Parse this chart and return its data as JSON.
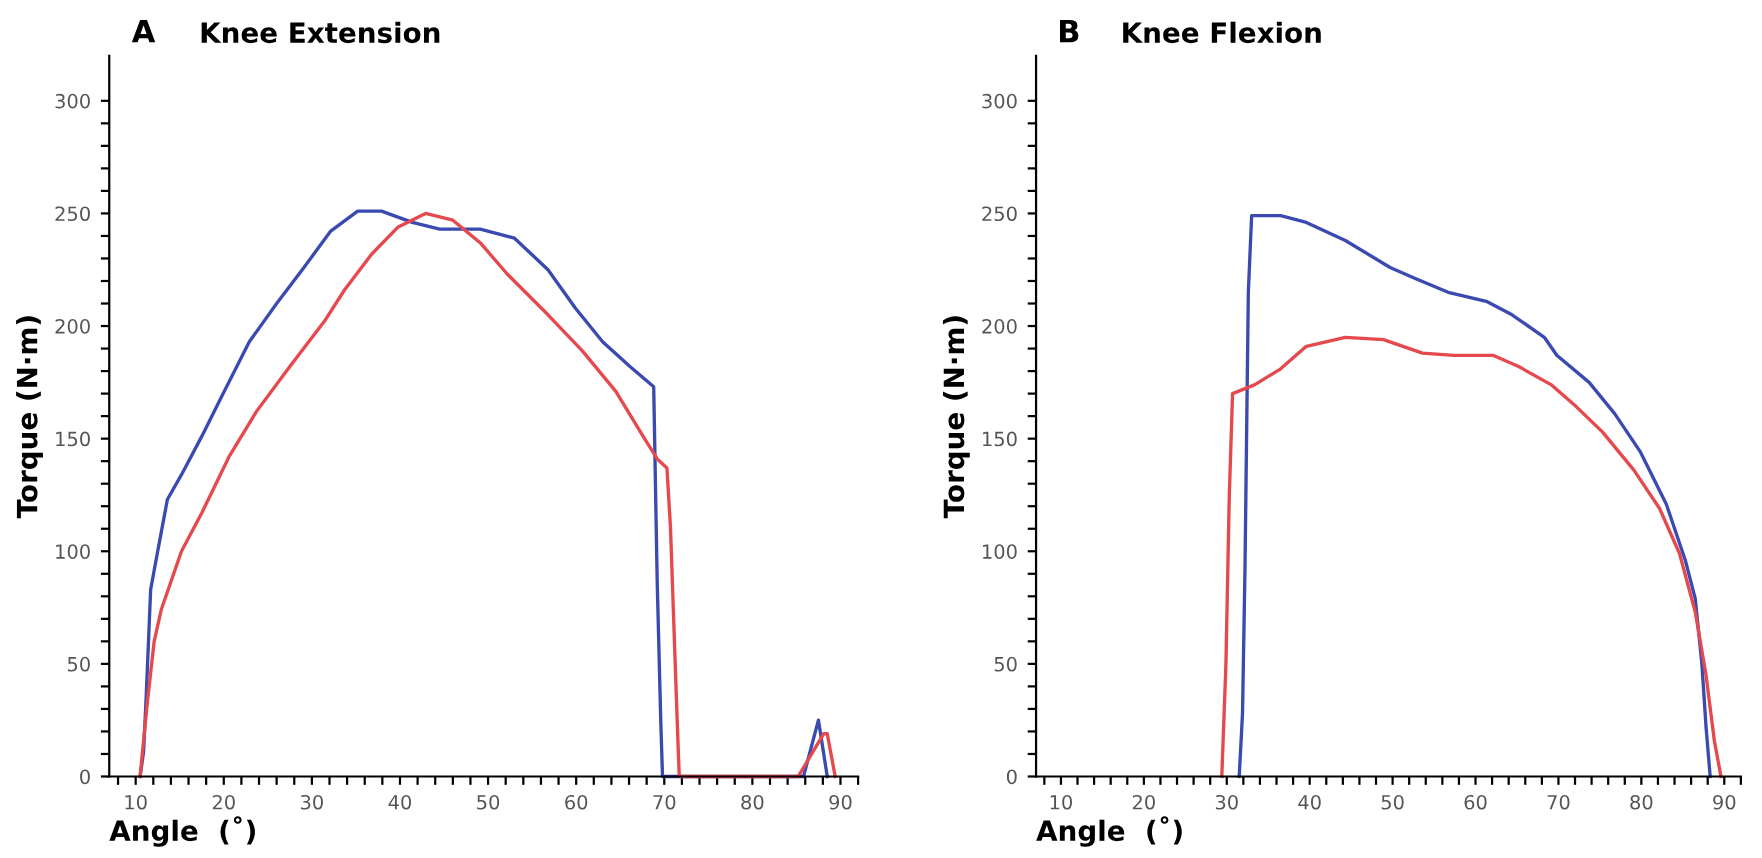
{
  "chart_data": [
    {
      "type": "line",
      "title": "Knee Extension",
      "annotations": [
        "A"
      ],
      "xlabel": "Angle  (˚)",
      "ylabel": "Torque (N·m)",
      "xlim": [
        7,
        92
      ],
      "ylim": [
        0,
        320
      ],
      "xticks": [
        {
          "value": 8,
          "label": null
        },
        10,
        {
          "value": 12,
          "label": null
        },
        {
          "value": 14,
          "label": null
        },
        {
          "value": 16,
          "label": null
        },
        {
          "value": 18,
          "label": null
        },
        20,
        {
          "value": 22,
          "label": null
        },
        {
          "value": 24,
          "label": null
        },
        {
          "value": 26,
          "label": null
        },
        {
          "value": 28,
          "label": null
        },
        30,
        {
          "value": 32,
          "label": null
        },
        {
          "value": 34,
          "label": null
        },
        {
          "value": 36,
          "label": null
        },
        {
          "value": 38,
          "label": null
        },
        40,
        {
          "value": 42,
          "label": null
        },
        {
          "value": 44,
          "label": null
        },
        {
          "value": 46,
          "label": null
        },
        {
          "value": 48,
          "label": null
        },
        50,
        {
          "value": 52,
          "label": null
        },
        {
          "value": 54,
          "label": null
        },
        {
          "value": 56,
          "label": null
        },
        {
          "value": 58,
          "label": null
        },
        60,
        {
          "value": 62,
          "label": null
        },
        {
          "value": 64,
          "label": null
        },
        {
          "value": 66,
          "label": null
        },
        {
          "value": 68,
          "label": null
        },
        70,
        {
          "value": 72,
          "label": null
        },
        {
          "value": 74,
          "label": null
        },
        {
          "value": 76,
          "label": null
        },
        {
          "value": 78,
          "label": null
        },
        80,
        {
          "value": 82,
          "label": null
        },
        {
          "value": 84,
          "label": null
        },
        {
          "value": 86,
          "label": null
        },
        {
          "value": 88,
          "label": null
        },
        90,
        {
          "value": 92,
          "label": null
        }
      ],
      "yticks": [
        0,
        {
          "value": 10,
          "label": null
        },
        {
          "value": 20,
          "label": null
        },
        {
          "value": 30,
          "label": null
        },
        {
          "value": 40,
          "label": null
        },
        50,
        {
          "value": 60,
          "label": null
        },
        {
          "value": 70,
          "label": null
        },
        {
          "value": 80,
          "label": null
        },
        {
          "value": 90,
          "label": null
        },
        100,
        {
          "value": 110,
          "label": null
        },
        {
          "value": 120,
          "label": null
        },
        {
          "value": 130,
          "label": null
        },
        {
          "value": 140,
          "label": null
        },
        150,
        {
          "value": 160,
          "label": null
        },
        {
          "value": 170,
          "label": null
        },
        {
          "value": 180,
          "label": null
        },
        {
          "value": 190,
          "label": null
        },
        200,
        {
          "value": 210,
          "label": null
        },
        {
          "value": 220,
          "label": null
        },
        {
          "value": 230,
          "label": null
        },
        {
          "value": 240,
          "label": null
        },
        250,
        {
          "value": 260,
          "label": null
        },
        {
          "value": 270,
          "label": null
        },
        {
          "value": 280,
          "label": null
        },
        {
          "value": 290,
          "label": null
        },
        300
      ],
      "grid": false,
      "legend": false,
      "marker": "none",
      "line_style": "solid",
      "series": [
        {
          "color": "#3a4ab0",
          "x": [
            10.5,
            10.9,
            11.2,
            11.7,
            12.5,
            13.6,
            15.2,
            17.5,
            19.8,
            22.9,
            26,
            29.1,
            32.1,
            35.2,
            37.9,
            41.4,
            44.5,
            49.1,
            53,
            56.8,
            59.9,
            63,
            66.1,
            68.8,
            69.2,
            69.6,
            69.8,
            85.8,
            87.5,
            88.5
          ],
          "values": [
            0,
            11,
            36,
            83,
            100,
            123,
            134,
            151,
            169,
            193,
            210,
            226,
            242,
            251,
            251,
            246,
            243,
            243,
            239,
            225,
            208,
            193,
            182,
            173,
            86,
            25,
            0,
            0,
            25,
            0
          ]
        },
        {
          "color": "#e5484d",
          "x": [
            10.5,
            11.3,
            12.1,
            12.9,
            15.2,
            17.5,
            20.6,
            23.7,
            27.5,
            31.4,
            33.7,
            36.8,
            39.8,
            42.9,
            46,
            49.1,
            52.2,
            56.8,
            60.7,
            64.5,
            67.6,
            69.2,
            70.3,
            70.7,
            71.5,
            71.7,
            85.2,
            88.1,
            88.5,
            89.4
          ],
          "values": [
            0,
            32,
            60,
            74,
            100,
            117,
            142,
            162,
            182,
            202,
            216,
            232,
            244,
            250,
            247,
            237,
            223,
            205,
            189,
            171,
            151,
            141,
            137,
            111,
            21,
            0,
            0,
            19,
            19,
            0
          ]
        }
      ]
    },
    {
      "type": "line",
      "title": "Knee Flexion",
      "annotations": [
        "B"
      ],
      "xlabel": "Angle  (˚)",
      "ylabel": "Torque (N·m)",
      "xlim": [
        7,
        92
      ],
      "ylim": [
        0,
        320
      ],
      "xticks": [
        {
          "value": 8,
          "label": null
        },
        10,
        {
          "value": 12,
          "label": null
        },
        {
          "value": 14,
          "label": null
        },
        {
          "value": 16,
          "label": null
        },
        {
          "value": 18,
          "label": null
        },
        20,
        {
          "value": 22,
          "label": null
        },
        {
          "value": 24,
          "label": null
        },
        {
          "value": 26,
          "label": null
        },
        {
          "value": 28,
          "label": null
        },
        30,
        {
          "value": 32,
          "label": null
        },
        {
          "value": 34,
          "label": null
        },
        {
          "value": 36,
          "label": null
        },
        {
          "value": 38,
          "label": null
        },
        40,
        {
          "value": 42,
          "label": null
        },
        {
          "value": 44,
          "label": null
        },
        {
          "value": 46,
          "label": null
        },
        {
          "value": 48,
          "label": null
        },
        50,
        {
          "value": 52,
          "label": null
        },
        {
          "value": 54,
          "label": null
        },
        {
          "value": 56,
          "label": null
        },
        {
          "value": 58,
          "label": null
        },
        60,
        {
          "value": 62,
          "label": null
        },
        {
          "value": 64,
          "label": null
        },
        {
          "value": 66,
          "label": null
        },
        {
          "value": 68,
          "label": null
        },
        70,
        {
          "value": 72,
          "label": null
        },
        {
          "value": 74,
          "label": null
        },
        {
          "value": 76,
          "label": null
        },
        {
          "value": 78,
          "label": null
        },
        80,
        {
          "value": 82,
          "label": null
        },
        {
          "value": 84,
          "label": null
        },
        {
          "value": 86,
          "label": null
        },
        {
          "value": 88,
          "label": null
        },
        90,
        {
          "value": 92,
          "label": null
        }
      ],
      "yticks": [
        0,
        {
          "value": 10,
          "label": null
        },
        {
          "value": 20,
          "label": null
        },
        {
          "value": 30,
          "label": null
        },
        {
          "value": 40,
          "label": null
        },
        50,
        {
          "value": 60,
          "label": null
        },
        {
          "value": 70,
          "label": null
        },
        {
          "value": 80,
          "label": null
        },
        {
          "value": 90,
          "label": null
        },
        100,
        {
          "value": 110,
          "label": null
        },
        {
          "value": 120,
          "label": null
        },
        {
          "value": 130,
          "label": null
        },
        {
          "value": 140,
          "label": null
        },
        150,
        {
          "value": 160,
          "label": null
        },
        {
          "value": 170,
          "label": null
        },
        {
          "value": 180,
          "label": null
        },
        {
          "value": 190,
          "label": null
        },
        200,
        {
          "value": 210,
          "label": null
        },
        {
          "value": 220,
          "label": null
        },
        {
          "value": 230,
          "label": null
        },
        {
          "value": 240,
          "label": null
        },
        250,
        {
          "value": 260,
          "label": null
        },
        {
          "value": 270,
          "label": null
        },
        {
          "value": 280,
          "label": null
        },
        {
          "value": 290,
          "label": null
        },
        300
      ],
      "grid": false,
      "legend": false,
      "marker": "none",
      "line_style": "solid",
      "series": [
        {
          "color": "#3a4ab0",
          "x": [
            31.5,
            31.9,
            32.2,
            32.6,
            33,
            36.5,
            39.6,
            44.3,
            49.7,
            52.8,
            56.7,
            61.3,
            64.4,
            68.3,
            69.8,
            73.7,
            76.8,
            79.9,
            83,
            85.3,
            86.5,
            87.3,
            87.8,
            88.3
          ],
          "values": [
            0,
            28,
            93,
            215,
            249,
            249,
            246,
            238,
            226,
            221,
            215,
            211,
            205,
            195,
            187,
            175,
            161,
            144,
            121,
            96,
            79,
            50,
            22,
            0
          ]
        },
        {
          "color": "#e5484d",
          "x": [
            29.4,
            29.9,
            30.3,
            30.7,
            33.4,
            36.5,
            39.6,
            44.3,
            48.9,
            53.6,
            57.4,
            62.1,
            65.2,
            69.1,
            72.2,
            75.3,
            79.1,
            82.2,
            84.6,
            86.5,
            87.8,
            88.8,
            89.6
          ],
          "values": [
            0,
            50,
            124,
            170,
            174,
            181,
            191,
            195,
            194,
            188,
            187,
            187,
            182,
            174,
            164,
            153,
            136,
            119,
            99,
            73,
            45,
            16,
            0
          ]
        }
      ]
    }
  ]
}
